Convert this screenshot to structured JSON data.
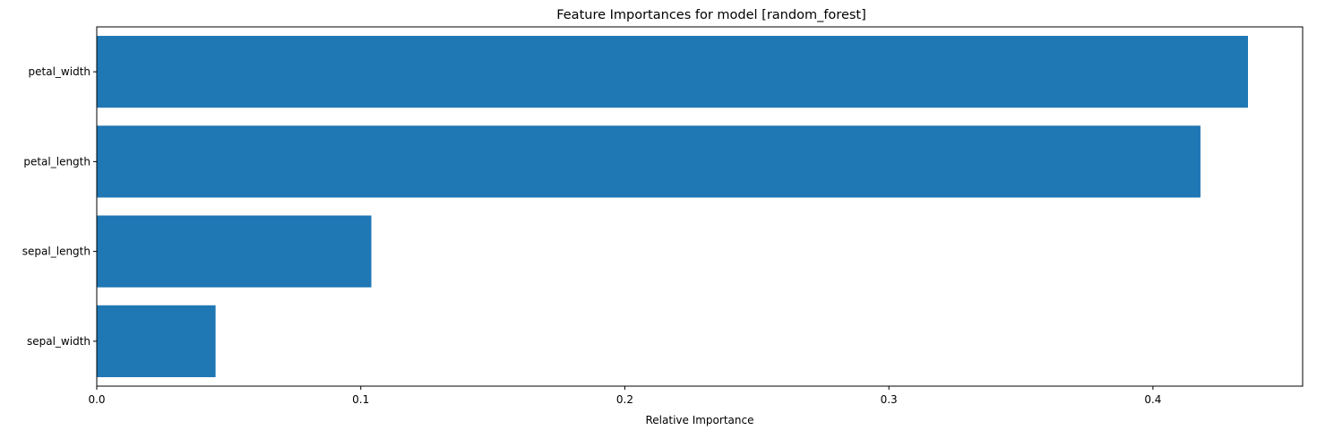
{
  "chart_data": {
    "type": "bar",
    "orientation": "horizontal",
    "title": "Feature Importances for model [random_forest]",
    "xlabel": "Relative Importance",
    "ylabel": "",
    "categories": [
      "petal_width",
      "petal_length",
      "sepal_length",
      "sepal_width"
    ],
    "values": [
      0.436,
      0.418,
      0.104,
      0.045
    ],
    "xlim": [
      0,
      0.4567
    ],
    "xticks": [
      0.0,
      0.1,
      0.2,
      0.3,
      0.4
    ],
    "xtick_labels": [
      "0.0",
      "0.1",
      "0.2",
      "0.3",
      "0.4"
    ],
    "bar_color": "#1f77b4",
    "grid": false,
    "legend": "none"
  }
}
